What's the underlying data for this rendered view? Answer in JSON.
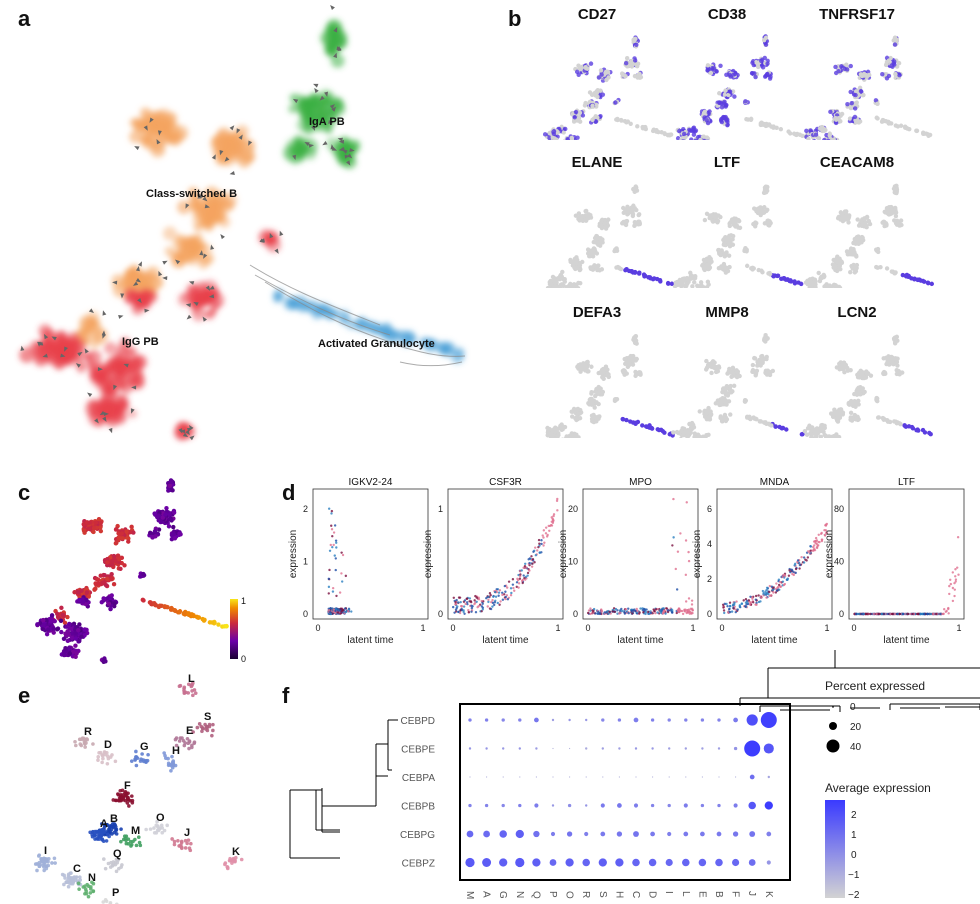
{
  "panels": {
    "a": "a",
    "b": "b",
    "c": "c",
    "d": "d",
    "e": "e",
    "f": "f"
  },
  "panel_a": {
    "labels": [
      "IgA PB",
      "Class-switched B",
      "IgG PB",
      "Activated Granulocyte"
    ],
    "colors": {
      "iga": "#3cb043",
      "csb": "#f4a460",
      "igg": "#e8404a",
      "gran": "#4a9fd8"
    }
  },
  "panel_b": {
    "genes": [
      "CD27",
      "CD38",
      "TNFRSF17",
      "ELANE",
      "LTF",
      "CEACAM8",
      "DEFA3",
      "MMP8",
      "LCN2"
    ],
    "expr_color": "#5a3de0",
    "base_color": "#d3d3d3"
  },
  "panel_c": {
    "colorbar_max": "1",
    "colorbar_min": "0"
  },
  "panel_d": {
    "genes": [
      "IGKV2-24",
      "CSF3R",
      "MPO",
      "MNDA",
      "LTF"
    ],
    "ylabel": "expression",
    "xlabel": "latent time",
    "x_ticks": [
      "0",
      "1"
    ],
    "y_ticks": [
      [
        "0",
        "1",
        "2"
      ],
      [
        "0",
        "1"
      ],
      [
        "0",
        "10",
        "20"
      ],
      [
        "0",
        "2",
        "4",
        "6"
      ],
      [
        "0",
        "40",
        "80"
      ]
    ]
  },
  "panel_e": {
    "clusters": [
      "L",
      "S",
      "R",
      "D",
      "G",
      "E",
      "H",
      "F",
      "O",
      "B",
      "A",
      "M",
      "J",
      "I",
      "Q",
      "C",
      "K",
      "N",
      "P"
    ]
  },
  "chart_data": {
    "type": "dotplot",
    "title": "",
    "rows": [
      "CEBPD",
      "CEBPE",
      "CEBPA",
      "CEBPB",
      "CEBPG",
      "CEBPZ"
    ],
    "columns": [
      "M",
      "A",
      "G",
      "N",
      "Q",
      "P",
      "O",
      "R",
      "S",
      "H",
      "C",
      "D",
      "I",
      "L",
      "E",
      "B",
      "F",
      "J",
      "K"
    ],
    "percent_expressed": [
      [
        2,
        2,
        2,
        2,
        4,
        1,
        1,
        1,
        2,
        2,
        4,
        2,
        2,
        2,
        2,
        2,
        4,
        22,
        45
      ],
      [
        1,
        1,
        1,
        1,
        1,
        0,
        0,
        1,
        1,
        1,
        1,
        1,
        1,
        1,
        1,
        1,
        2,
        45,
        18
      ],
      [
        0,
        0,
        0,
        0,
        0,
        0,
        0,
        0,
        0,
        0,
        0,
        0,
        0,
        0,
        0,
        0,
        0,
        4,
        1
      ],
      [
        2,
        2,
        2,
        2,
        3,
        1,
        2,
        1,
        3,
        4,
        3,
        2,
        2,
        3,
        2,
        2,
        3,
        10,
        12
      ],
      [
        8,
        8,
        10,
        12,
        7,
        3,
        5,
        3,
        4,
        5,
        6,
        4,
        3,
        4,
        4,
        4,
        5,
        6,
        4
      ],
      [
        15,
        14,
        12,
        15,
        12,
        8,
        12,
        10,
        12,
        12,
        10,
        10,
        9,
        10,
        10,
        10,
        9,
        8,
        3
      ]
    ],
    "average_expression": [
      [
        0.2,
        0.2,
        0.0,
        0.1,
        0.5,
        -0.8,
        -0.5,
        -0.6,
        0.0,
        0.1,
        0.3,
        0.2,
        0.0,
        0.1,
        0.1,
        0.1,
        0.4,
        1.8,
        2.3
      ],
      [
        -0.5,
        -0.5,
        -0.6,
        -0.5,
        -0.7,
        -1.5,
        -1.5,
        -1.2,
        -0.8,
        -0.8,
        -0.6,
        -0.6,
        -0.8,
        -0.8,
        -0.8,
        -0.8,
        -0.4,
        2.4,
        1.6
      ],
      [
        -1.5,
        -1.5,
        -1.5,
        -1.5,
        -1.5,
        -1.5,
        -1.5,
        -1.5,
        -1.5,
        -1.5,
        -1.5,
        -1.5,
        -1.5,
        -1.5,
        -1.5,
        -1.5,
        -1.5,
        0.8,
        -1.0
      ],
      [
        0.1,
        0.1,
        0.0,
        0.2,
        0.3,
        -0.6,
        -0.2,
        -0.5,
        0.4,
        0.5,
        0.3,
        0.1,
        0.0,
        0.3,
        0.1,
        0.1,
        0.3,
        1.6,
        2.4
      ],
      [
        1.0,
        0.9,
        1.1,
        1.3,
        0.7,
        0.3,
        0.6,
        0.2,
        0.4,
        0.5,
        0.6,
        0.4,
        0.2,
        0.4,
        0.4,
        0.4,
        0.5,
        0.6,
        0.2
      ],
      [
        1.5,
        1.4,
        1.3,
        1.5,
        1.3,
        1.0,
        1.3,
        1.1,
        1.3,
        1.3,
        1.1,
        1.1,
        1.0,
        1.1,
        1.1,
        1.1,
        1.0,
        0.8,
        -0.5
      ]
    ],
    "size_legend": {
      "title": "Percent expressed",
      "values": [
        "0",
        "20",
        "40"
      ]
    },
    "color_legend": {
      "title": "Average expression",
      "values": [
        "2",
        "1",
        "0",
        "−1",
        "−2"
      ]
    },
    "color_range": [
      -2.5,
      2.5
    ],
    "low_color": "#d3d3d3",
    "high_color": "#4040ff"
  }
}
